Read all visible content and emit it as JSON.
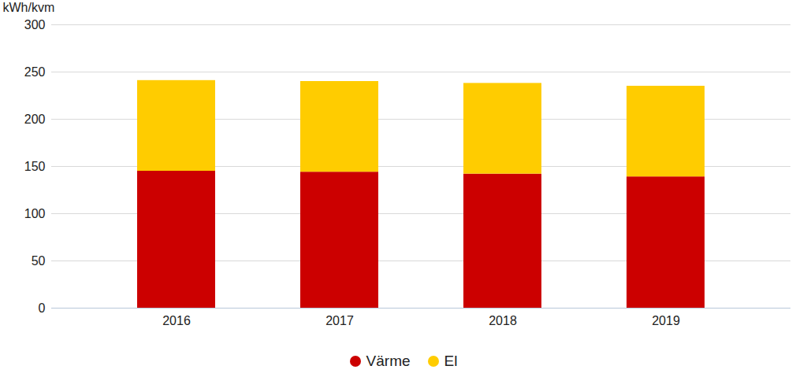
{
  "chart_data": {
    "type": "bar",
    "stacked": true,
    "y_label": "kWh/kvm",
    "categories": [
      "2016",
      "2017",
      "2018",
      "2019"
    ],
    "series": [
      {
        "name": "Värme",
        "color": "#cc0000",
        "values": [
          145,
          144,
          142,
          139
        ]
      },
      {
        "name": "El",
        "color": "#ffcc00",
        "values": [
          96,
          96,
          96,
          96
        ]
      }
    ],
    "ylim": [
      0,
      300
    ],
    "yticks": [
      0,
      50,
      100,
      150,
      200,
      250,
      300
    ],
    "grid": true,
    "legend": "bottom"
  }
}
